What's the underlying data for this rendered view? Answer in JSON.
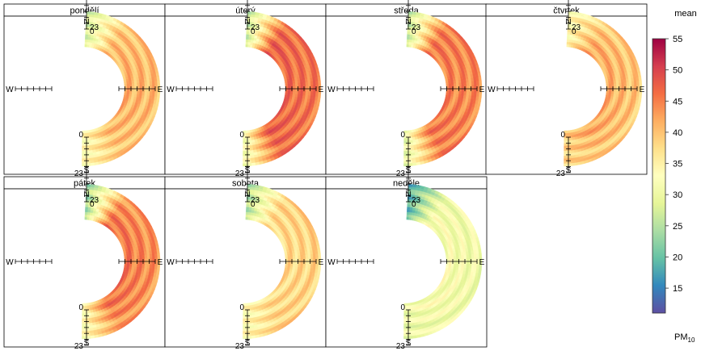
{
  "chart_data": {
    "type": "polar-annulus-facets",
    "facet_labels": [
      "pondělí",
      "úterý",
      "středa",
      "čtvrtek",
      "pátek",
      "sobota",
      "neděle"
    ],
    "compass": {
      "north": "N",
      "south": "S",
      "west": "W",
      "east": "E"
    },
    "hour_range_labels": {
      "start": "0",
      "end": "23"
    },
    "legend": {
      "title": "mean",
      "label_main": "PM",
      "label_sub": "10",
      "ticks": [
        15,
        20,
        25,
        30,
        35,
        40,
        45,
        50,
        55
      ],
      "range": [
        11,
        55
      ]
    },
    "colors": {
      "scale": [
        "#5E4FA2",
        "#3288BD",
        "#66C2A5",
        "#ABDDA4",
        "#E6F598",
        "#FFFFBF",
        "#FEE08B",
        "#FDAE61",
        "#F46D43",
        "#D53E4F",
        "#9E0142"
      ]
    },
    "series": [
      {
        "name": "pondělí",
        "outer": 38,
        "inner": 40,
        "west": 42,
        "north_end": 27,
        "south_end": 33
      },
      {
        "name": "úterý",
        "outer": 47,
        "inner": 50,
        "west": 44,
        "north_end": 25,
        "south_end": 30
      },
      {
        "name": "středa",
        "outer": 46,
        "inner": 47,
        "west": 43,
        "north_end": 25,
        "south_end": 28
      },
      {
        "name": "čtvrtek",
        "outer": 38,
        "inner": 44,
        "west": 40,
        "north_end": 33,
        "south_end": 38
      },
      {
        "name": "pátek",
        "outer": 42,
        "inner": 48,
        "west": 44,
        "north_end": 22,
        "south_end": 32
      },
      {
        "name": "sobota",
        "outer": 39,
        "inner": 37,
        "west": 38,
        "north_end": 24,
        "south_end": 33
      },
      {
        "name": "neděle",
        "outer": 30,
        "inner": 33,
        "west": 31,
        "north_end": 18,
        "south_end": 30
      }
    ]
  }
}
